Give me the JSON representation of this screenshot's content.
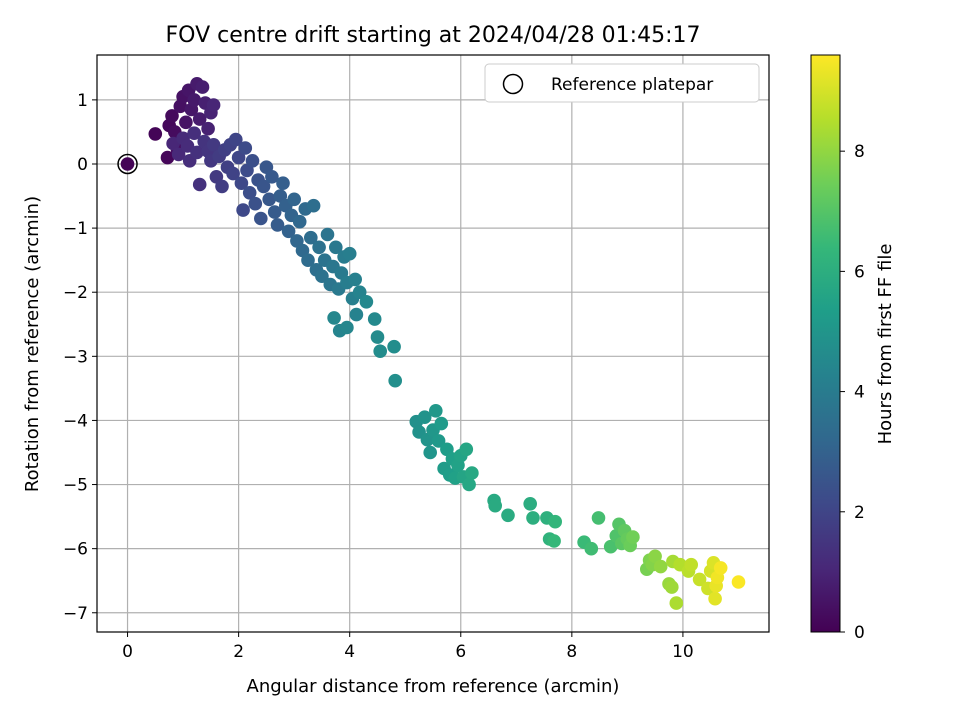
{
  "chart_data": {
    "type": "scatter",
    "title": "FOV centre drift starting at 2024/04/28 01:45:17",
    "xlabel": "Angular distance from reference (arcmin)",
    "ylabel": "Rotation from reference (arcmin)",
    "xlim": [
      -0.55,
      11.55
    ],
    "ylim": [
      -7.3,
      1.7
    ],
    "xticks": [
      0,
      2,
      4,
      6,
      8,
      10
    ],
    "yticks": [
      1,
      0,
      -1,
      -2,
      -3,
      -4,
      -5,
      -6,
      -7
    ],
    "grid": true,
    "legend": {
      "position": "top-right",
      "entries": [
        "Reference platepar"
      ]
    },
    "reference": {
      "x": 0,
      "y": 0
    },
    "colormap": "viridis",
    "colorbar": {
      "label": "Hours from first FF file",
      "min": 0,
      "max": 9.6,
      "ticks": [
        0,
        2,
        4,
        6,
        8
      ]
    },
    "colorscale_stops": [
      "#440154",
      "#482878",
      "#3e4989",
      "#31688e",
      "#26828e",
      "#1f9e89",
      "#35b779",
      "#6ece58",
      "#b5de2b",
      "#fde725"
    ],
    "points": [
      [
        0,
        0,
        0.05
      ],
      [
        0.5,
        0.47,
        0.1
      ],
      [
        0.72,
        0.1,
        0.15
      ],
      [
        0.75,
        0.6,
        0.2
      ],
      [
        0.8,
        0.75,
        0.25
      ],
      [
        0.85,
        0.5,
        0.3
      ],
      [
        0.9,
        0.22,
        0.35
      ],
      [
        0.95,
        0.9,
        0.4
      ],
      [
        1.0,
        1.05,
        0.45
      ],
      [
        1.05,
        0.65,
        0.5
      ],
      [
        1.1,
        1.15,
        0.55
      ],
      [
        1.15,
        0.85,
        0.6
      ],
      [
        1.2,
        1.0,
        0.65
      ],
      [
        1.25,
        1.25,
        0.7
      ],
      [
        1.3,
        0.7,
        0.75
      ],
      [
        1.35,
        1.2,
        0.8
      ],
      [
        1.4,
        0.95,
        0.85
      ],
      [
        1.45,
        0.55,
        0.9
      ],
      [
        1.5,
        0.8,
        0.95
      ],
      [
        1.55,
        0.92,
        1.0
      ],
      [
        0.82,
        0.32,
        1.05
      ],
      [
        0.92,
        0.15,
        1.1
      ],
      [
        1.0,
        0.4,
        1.15
      ],
      [
        1.08,
        0.28,
        1.2
      ],
      [
        1.12,
        0.05,
        1.25
      ],
      [
        1.2,
        0.48,
        1.3
      ],
      [
        1.25,
        0.18,
        1.35
      ],
      [
        1.3,
        -0.32,
        1.4
      ],
      [
        1.38,
        0.35,
        1.45
      ],
      [
        1.45,
        0.2,
        1.5
      ],
      [
        1.5,
        0.05,
        1.55
      ],
      [
        1.55,
        0.3,
        1.6
      ],
      [
        1.6,
        -0.2,
        1.65
      ],
      [
        1.65,
        0.12,
        1.7
      ],
      [
        1.7,
        -0.35,
        1.75
      ],
      [
        1.75,
        0.22,
        1.8
      ],
      [
        1.8,
        -0.05,
        1.85
      ],
      [
        1.85,
        0.3,
        1.9
      ],
      [
        1.9,
        -0.15,
        1.95
      ],
      [
        1.95,
        0.38,
        2.0
      ],
      [
        2.0,
        0.1,
        2.05
      ],
      [
        2.05,
        -0.3,
        2.1
      ],
      [
        2.08,
        -0.72,
        2.15
      ],
      [
        2.12,
        0.25,
        2.2
      ],
      [
        2.15,
        -0.1,
        2.25
      ],
      [
        2.2,
        -0.45,
        2.3
      ],
      [
        2.25,
        0.05,
        2.35
      ],
      [
        2.3,
        -0.62,
        2.4
      ],
      [
        2.35,
        -0.25,
        2.45
      ],
      [
        2.4,
        -0.85,
        2.5
      ],
      [
        2.45,
        -0.35,
        2.55
      ],
      [
        2.5,
        -0.05,
        2.6
      ],
      [
        2.55,
        -0.55,
        2.65
      ],
      [
        2.6,
        -0.2,
        2.7
      ],
      [
        2.65,
        -0.75,
        2.75
      ],
      [
        2.7,
        -0.95,
        2.8
      ],
      [
        2.75,
        -0.5,
        2.85
      ],
      [
        2.8,
        -0.3,
        2.9
      ],
      [
        2.85,
        -0.65,
        2.95
      ],
      [
        2.9,
        -1.05,
        3.0
      ],
      [
        2.95,
        -0.8,
        3.05
      ],
      [
        3.0,
        -0.55,
        3.1
      ],
      [
        3.05,
        -1.2,
        3.15
      ],
      [
        3.1,
        -0.9,
        3.2
      ],
      [
        3.15,
        -1.35,
        3.25
      ],
      [
        3.2,
        -0.7,
        3.3
      ],
      [
        3.25,
        -1.5,
        3.35
      ],
      [
        3.3,
        -1.15,
        3.4
      ],
      [
        3.35,
        -0.65,
        3.45
      ],
      [
        3.4,
        -1.65,
        3.5
      ],
      [
        3.45,
        -1.3,
        3.55
      ],
      [
        3.5,
        -1.75,
        3.6
      ],
      [
        3.55,
        -1.5,
        3.65
      ],
      [
        3.6,
        -1.1,
        3.7
      ],
      [
        3.65,
        -1.88,
        3.75
      ],
      [
        3.7,
        -1.6,
        3.8
      ],
      [
        3.75,
        -1.3,
        3.85
      ],
      [
        3.8,
        -1.95,
        3.9
      ],
      [
        3.85,
        -1.7,
        3.95
      ],
      [
        3.9,
        -1.45,
        4.0
      ],
      [
        3.95,
        -1.85,
        4.05
      ],
      [
        4.0,
        -1.4,
        4.1
      ],
      [
        4.05,
        -2.1,
        4.15
      ],
      [
        4.1,
        -1.8,
        4.2
      ],
      [
        4.12,
        -2.35,
        4.25
      ],
      [
        4.18,
        -2.0,
        4.3
      ],
      [
        3.82,
        -2.6,
        4.35
      ],
      [
        3.95,
        -2.55,
        4.4
      ],
      [
        3.72,
        -2.4,
        4.45
      ],
      [
        4.3,
        -2.15,
        4.5
      ],
      [
        4.45,
        -2.42,
        4.55
      ],
      [
        4.5,
        -2.7,
        4.6
      ],
      [
        4.55,
        -2.92,
        4.65
      ],
      [
        4.8,
        -2.85,
        4.7
      ],
      [
        4.82,
        -3.38,
        4.75
      ],
      [
        5.2,
        -4.02,
        4.8
      ],
      [
        5.25,
        -4.18,
        4.85
      ],
      [
        5.35,
        -3.95,
        4.9
      ],
      [
        5.4,
        -4.3,
        4.95
      ],
      [
        5.45,
        -4.5,
        5.0
      ],
      [
        5.5,
        -4.15,
        5.05
      ],
      [
        5.55,
        -3.85,
        5.1
      ],
      [
        5.6,
        -4.32,
        5.15
      ],
      [
        5.65,
        -4.05,
        5.2
      ],
      [
        5.7,
        -4.75,
        5.25
      ],
      [
        5.75,
        -4.45,
        5.3
      ],
      [
        5.8,
        -4.85,
        5.35
      ],
      [
        5.85,
        -4.6,
        5.4
      ],
      [
        5.9,
        -4.9,
        5.45
      ],
      [
        5.95,
        -4.7,
        5.5
      ],
      [
        6.0,
        -4.55,
        5.55
      ],
      [
        6.05,
        -4.88,
        5.6
      ],
      [
        6.1,
        -4.45,
        5.65
      ],
      [
        6.15,
        -5.0,
        5.7
      ],
      [
        6.2,
        -4.82,
        5.75
      ],
      [
        6.6,
        -5.25,
        5.8
      ],
      [
        6.62,
        -5.33,
        5.85
      ],
      [
        6.85,
        -5.48,
        5.9
      ],
      [
        7.25,
        -5.3,
        5.95
      ],
      [
        7.3,
        -5.52,
        6.0
      ],
      [
        7.55,
        -5.52,
        6.1
      ],
      [
        7.6,
        -5.85,
        6.2
      ],
      [
        7.7,
        -5.58,
        6.3
      ],
      [
        7.68,
        -5.88,
        6.4
      ],
      [
        8.22,
        -5.9,
        6.5
      ],
      [
        8.35,
        -6.0,
        6.6
      ],
      [
        8.48,
        -5.52,
        6.7
      ],
      [
        8.7,
        -5.97,
        6.8
      ],
      [
        8.8,
        -5.8,
        6.9
      ],
      [
        8.85,
        -5.62,
        7.0
      ],
      [
        8.9,
        -5.92,
        7.1
      ],
      [
        8.95,
        -5.72,
        7.2
      ],
      [
        9.0,
        -5.85,
        7.3
      ],
      [
        9.05,
        -5.95,
        7.4
      ],
      [
        9.1,
        -5.82,
        7.5
      ],
      [
        9.35,
        -6.32,
        7.6
      ],
      [
        9.4,
        -6.18,
        7.7
      ],
      [
        9.45,
        -6.25,
        7.8
      ],
      [
        9.5,
        -6.12,
        7.9
      ],
      [
        9.6,
        -6.28,
        8.0
      ],
      [
        9.75,
        -6.55,
        8.1
      ],
      [
        9.8,
        -6.6,
        8.2
      ],
      [
        9.82,
        -6.2,
        8.3
      ],
      [
        9.88,
        -6.85,
        8.4
      ],
      [
        9.95,
        -6.25,
        8.5
      ],
      [
        10.1,
        -6.35,
        8.6
      ],
      [
        10.15,
        -6.25,
        8.7
      ],
      [
        10.3,
        -6.48,
        8.8
      ],
      [
        10.45,
        -6.62,
        8.9
      ],
      [
        10.5,
        -6.35,
        9.0
      ],
      [
        10.55,
        -6.22,
        9.1
      ],
      [
        10.58,
        -6.78,
        9.2
      ],
      [
        10.6,
        -6.58,
        9.3
      ],
      [
        10.62,
        -6.45,
        9.4
      ],
      [
        10.68,
        -6.3,
        9.5
      ],
      [
        11.0,
        -6.52,
        9.55
      ]
    ]
  }
}
